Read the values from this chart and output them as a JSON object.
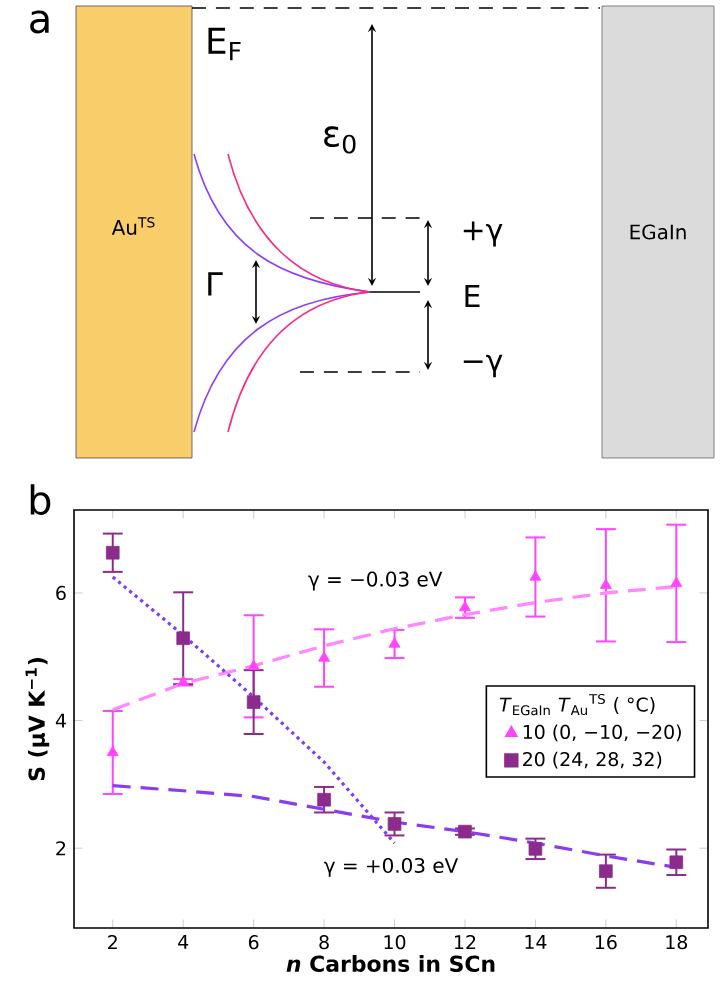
{
  "chart_data": [
    {
      "type": "other",
      "title": "a",
      "annotations": [
        "E$_{F}$",
        "ε$_{0}$",
        "+γ",
        "E",
        "−γ",
        "Γ",
        "Au$^{TS}$",
        "EGaIn"
      ]
    },
    {
      "type": "scatter",
      "title": "b",
      "xlabel": "*n* Carbons in SCn",
      "ylabel": "S (μV K$^{−1}$)",
      "legend_title": "*T*$_{EGaIn}$  *T*$_{Au}$$^{TS}$ ( °C)",
      "legend": "right",
      "xlim": [
        0.9,
        18.9
      ],
      "ylim": [
        0.75,
        7.3
      ],
      "xticks": [
        2,
        4,
        6,
        8,
        10,
        12,
        14,
        16,
        18
      ],
      "yticks": [
        2,
        4,
        6
      ],
      "annotations": [
        "γ = −0.03 eV",
        "γ = +0.03 eV"
      ],
      "series": [
        {
          "name": "10 (0, −10, −20)",
          "type": "scatter",
          "marker": "triangle",
          "color": "#ff44ff",
          "x": [
            2,
            4,
            6,
            8,
            10,
            12,
            14,
            16,
            18
          ],
          "values": [
            3.5,
            4.6,
            4.85,
            4.98,
            5.2,
            5.77,
            6.25,
            6.12,
            6.15
          ],
          "errors": [
            0.65,
            0.05,
            0.8,
            0.45,
            0.22,
            0.16,
            0.62,
            0.88,
            0.92
          ]
        },
        {
          "name": "20 (24, 28, 32)",
          "type": "scatter",
          "marker": "square",
          "color": "#8b2b8b",
          "x": [
            2,
            4,
            6,
            8,
            10,
            12,
            14,
            16,
            18
          ],
          "values": [
            6.63,
            5.29,
            4.29,
            2.76,
            2.38,
            2.26,
            1.99,
            1.64,
            1.78
          ],
          "errors": [
            0.3,
            0.72,
            0.5,
            0.2,
            0.18,
            0.05,
            0.16,
            0.26,
            0.2
          ]
        },
        {
          "type": "line",
          "line_style": "dashed",
          "color": "#ff88ff",
          "x": [
            2,
            4,
            6,
            8,
            10,
            12,
            14,
            16,
            18
          ],
          "values": [
            4.17,
            4.58,
            4.86,
            5.17,
            5.44,
            5.66,
            5.85,
            6.0,
            6.1
          ]
        },
        {
          "type": "line",
          "line_style": "dashed",
          "color": "#8a3cf0",
          "x": [
            2,
            4,
            6,
            8,
            10,
            12,
            14,
            16,
            18
          ],
          "values": [
            2.98,
            2.9,
            2.81,
            2.61,
            2.41,
            2.26,
            2.08,
            1.88,
            1.7
          ]
        },
        {
          "type": "line",
          "line_style": "dotted",
          "color": "#7a3cff",
          "x": [
            2,
            4,
            6,
            8,
            10
          ],
          "values": [
            6.25,
            5.34,
            4.37,
            3.35,
            2.08
          ]
        }
      ]
    }
  ]
}
